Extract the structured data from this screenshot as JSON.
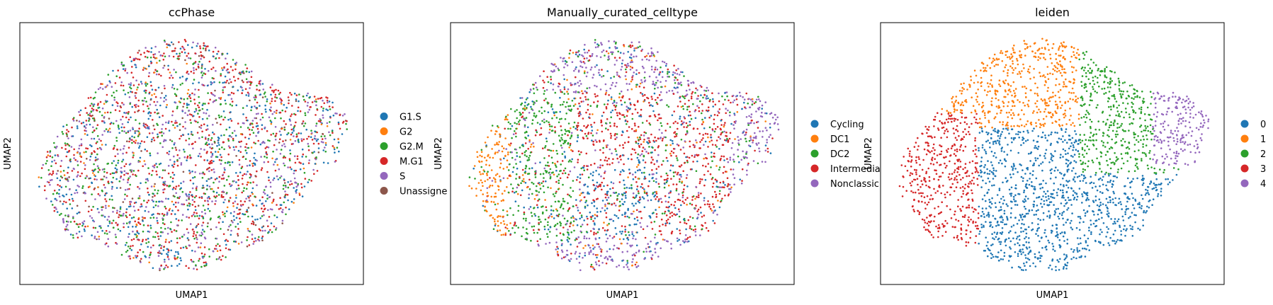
{
  "figure": {
    "background": "#ffffff"
  },
  "chart_data": [
    {
      "type": "scatter",
      "title": "ccPhase",
      "xlabel": "UMAP1",
      "ylabel": "UMAP2",
      "grid": false,
      "ticks": false,
      "legend_position": "right",
      "legend": [
        {
          "label": "G1.S",
          "color": "#1f77b4"
        },
        {
          "label": "G2",
          "color": "#ff7f0e"
        },
        {
          "label": "G2.M",
          "color": "#2ca02c"
        },
        {
          "label": "M.G1",
          "color": "#d62728"
        },
        {
          "label": "S",
          "color": "#9467bd"
        },
        {
          "label": "Unassigne",
          "color": "#8c564b"
        }
      ],
      "coloring": "mixed"
    },
    {
      "type": "scatter",
      "title": "Manually_curated_celltype",
      "xlabel": "UMAP1",
      "ylabel": "UMAP2",
      "grid": false,
      "ticks": false,
      "legend_position": "right",
      "legend": [
        {
          "label": "Cycling",
          "color": "#1f77b4"
        },
        {
          "label": "DC1",
          "color": "#ff7f0e"
        },
        {
          "label": "DC2",
          "color": "#2ca02c"
        },
        {
          "label": "Intermedia",
          "color": "#d62728"
        },
        {
          "label": "Nonclassic",
          "color": "#9467bd"
        }
      ],
      "coloring": "celltype"
    },
    {
      "type": "scatter",
      "title": "leiden",
      "xlabel": "UMAP1",
      "ylabel": "UMAP2",
      "grid": false,
      "ticks": false,
      "legend_position": "right",
      "legend": [
        {
          "label": "0",
          "color": "#1f77b4"
        },
        {
          "label": "1",
          "color": "#ff7f0e"
        },
        {
          "label": "2",
          "color": "#2ca02c"
        },
        {
          "label": "3",
          "color": "#d62728"
        },
        {
          "label": "4",
          "color": "#9467bd"
        }
      ],
      "coloring": "leiden"
    }
  ]
}
